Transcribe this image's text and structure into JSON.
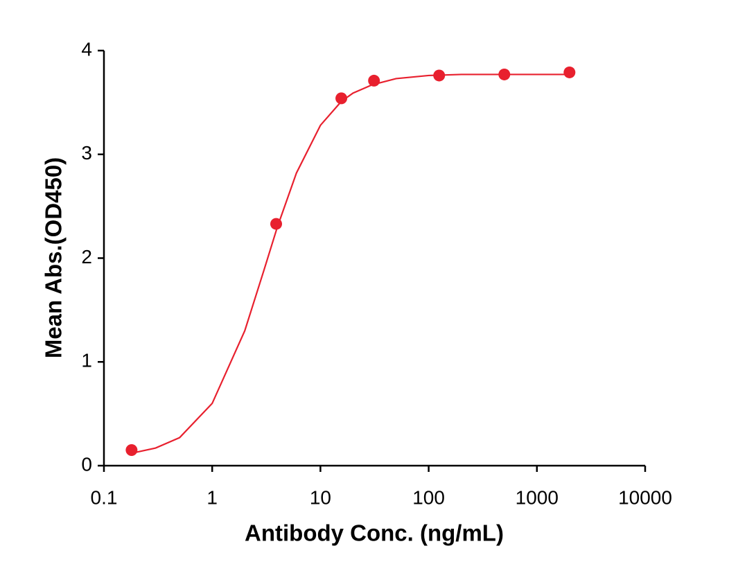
{
  "chart_data": {
    "type": "scatter",
    "xlabel": "Antibody Conc. (ng/mL)",
    "ylabel": "Mean Abs.(OD450)",
    "x": [
      0.18,
      3.9,
      15.6,
      31.25,
      125,
      500,
      2000
    ],
    "values": [
      0.15,
      2.33,
      3.54,
      3.71,
      3.76,
      3.77,
      3.79
    ],
    "color": "#e8202e",
    "curve": {
      "x": [
        0.18,
        0.3,
        0.5,
        1,
        2,
        3,
        4,
        6,
        10,
        15.6,
        20,
        30,
        50,
        100,
        200,
        500,
        1000,
        2000
      ],
      "values": [
        0.12,
        0.17,
        0.27,
        0.6,
        1.3,
        1.88,
        2.3,
        2.82,
        3.28,
        3.51,
        3.59,
        3.67,
        3.73,
        3.76,
        3.77,
        3.77,
        3.77,
        3.77
      ],
      "color": "#e8202e"
    },
    "xscale": "log",
    "xlim": [
      0.1,
      10000
    ],
    "xticks": [
      0.1,
      1,
      10,
      100,
      1000,
      10000
    ],
    "ylim": [
      0,
      4
    ],
    "yticks": [
      0,
      1,
      2,
      3,
      4
    ],
    "grid": false
  }
}
